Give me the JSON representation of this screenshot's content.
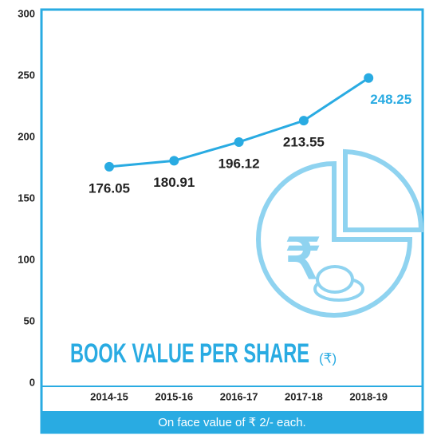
{
  "chart_data": {
    "type": "line",
    "title": "BOOK VALUE PER SHARE",
    "title_unit": "(₹)",
    "footnote": "On face value of  ₹ 2/- each.",
    "categories": [
      "2014-15",
      "2015-16",
      "2016-17",
      "2017-18",
      "2018-19"
    ],
    "values": [
      176.05,
      180.91,
      196.12,
      213.55,
      248.25
    ],
    "color": "#29abe2",
    "label_color": "#222222",
    "ylim": [
      0,
      300
    ],
    "yticks": [
      0,
      50,
      100,
      150,
      200,
      250,
      300
    ]
  }
}
